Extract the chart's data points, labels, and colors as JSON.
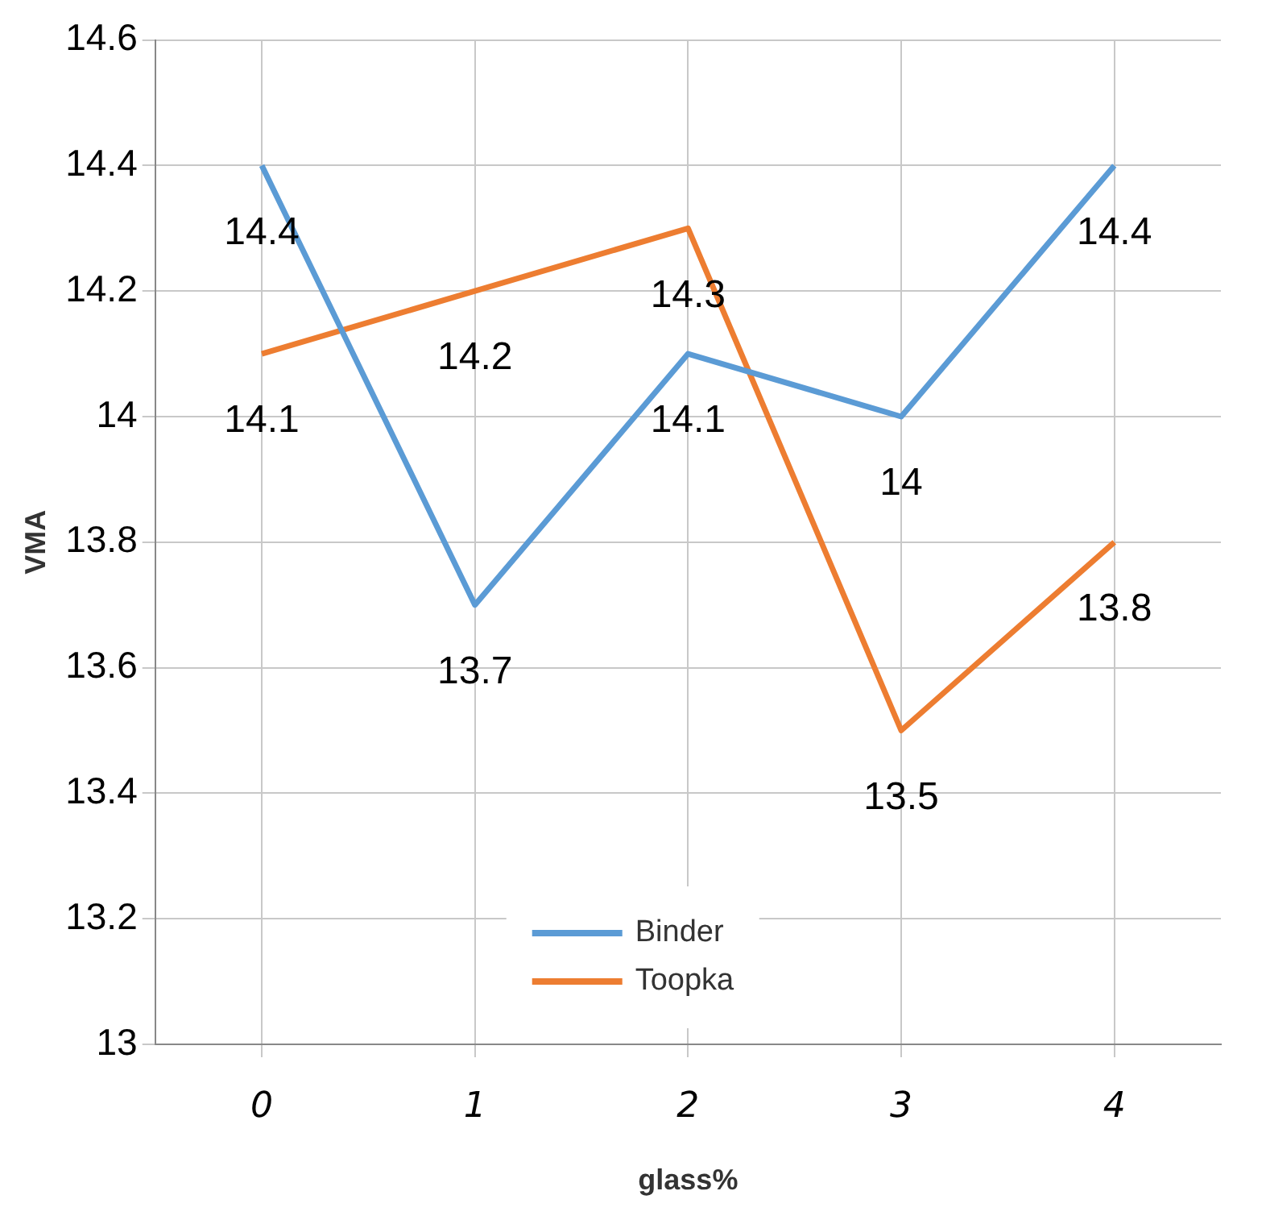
{
  "chart_data": {
    "type": "line",
    "xlabel": "glass%",
    "ylabel": "VMA",
    "categories": [
      "0",
      "1",
      "2",
      "3",
      "4"
    ],
    "series": [
      {
        "name": "Binder",
        "color": "#5b9bd5",
        "values": [
          14.4,
          13.7,
          14.1,
          14.0,
          14.4
        ]
      },
      {
        "name": "Toopka",
        "color": "#ed7d31",
        "values": [
          14.1,
          14.2,
          14.3,
          13.5,
          13.8
        ]
      }
    ],
    "ylim": [
      13,
      14.6
    ],
    "yticks": [
      13,
      13.2,
      13.4,
      13.6,
      13.8,
      14,
      14.2,
      14.4,
      14.6
    ],
    "grid": true,
    "legend": "bottom",
    "data_labels": true,
    "marker": "none",
    "line_style": "solid"
  }
}
